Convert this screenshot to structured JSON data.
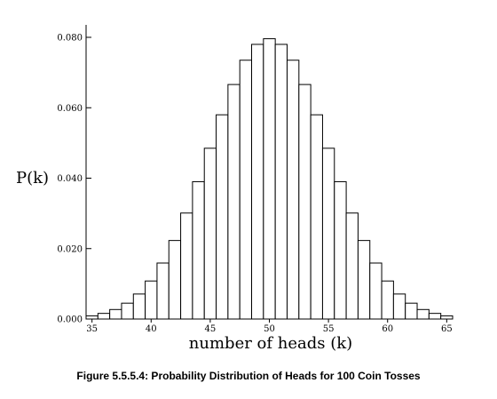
{
  "chart_data": {
    "type": "bar",
    "xlabel": "number of heads (k)",
    "ylabel": "P(k)",
    "x": [
      35,
      36,
      37,
      38,
      39,
      40,
      41,
      42,
      43,
      44,
      45,
      46,
      47,
      48,
      49,
      50,
      51,
      52,
      53,
      54,
      55,
      56,
      57,
      58,
      59,
      60,
      61,
      62,
      63,
      64,
      65
    ],
    "values": [
      0.0009,
      0.0016,
      0.0027,
      0.0045,
      0.0071,
      0.0108,
      0.0159,
      0.0223,
      0.0301,
      0.039,
      0.0485,
      0.058,
      0.0666,
      0.0735,
      0.078,
      0.0796,
      0.078,
      0.0735,
      0.0666,
      0.058,
      0.0485,
      0.039,
      0.0301,
      0.0223,
      0.0159,
      0.0108,
      0.0071,
      0.0045,
      0.0027,
      0.0016,
      0.0009
    ],
    "xlim": [
      34.5,
      65.5
    ],
    "ylim": [
      0,
      0.08
    ],
    "x_ticks": [
      35,
      40,
      45,
      50,
      55,
      60,
      65
    ],
    "y_ticks": [
      "0.000",
      "0.020",
      "0.040",
      "0.060",
      "0.080"
    ],
    "grid": false,
    "bar_fill": "#ffffff",
    "bar_stroke": "#000000"
  },
  "caption": "Figure 5.5.5.4: Probability Distribution of Heads for 100 Coin Tosses"
}
